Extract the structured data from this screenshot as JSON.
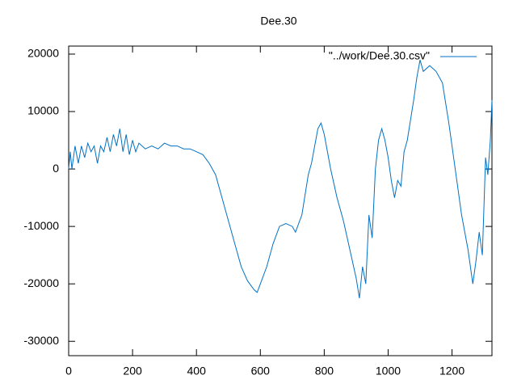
{
  "chart_data": {
    "type": "line",
    "title": "Dee.30",
    "x": [
      0,
      5,
      10,
      20,
      30,
      40,
      50,
      60,
      70,
      80,
      90,
      100,
      110,
      120,
      130,
      140,
      150,
      160,
      170,
      180,
      190,
      200,
      210,
      220,
      240,
      260,
      280,
      300,
      320,
      340,
      360,
      380,
      400,
      420,
      440,
      460,
      480,
      500,
      520,
      540,
      560,
      580,
      590,
      600,
      620,
      640,
      660,
      680,
      700,
      710,
      730,
      750,
      760,
      780,
      790,
      800,
      820,
      840,
      860,
      880,
      900,
      910,
      920,
      930,
      940,
      950,
      960,
      970,
      980,
      990,
      1000,
      1010,
      1020,
      1030,
      1040,
      1050,
      1060,
      1080,
      1090,
      1100,
      1110,
      1130,
      1150,
      1170,
      1190,
      1210,
      1230,
      1250,
      1265,
      1275,
      1285,
      1295,
      1305,
      1312,
      1320,
      1325
    ],
    "series": [
      {
        "name": "\"../work/Dee.30.csv\"",
        "color": "#0072c6",
        "values": [
          0,
          3000,
          0,
          4000,
          1000,
          4000,
          2000,
          4500,
          3000,
          4000,
          1000,
          4000,
          3000,
          5500,
          3000,
          6000,
          4000,
          7000,
          3000,
          6000,
          2500,
          5000,
          3000,
          4500,
          3500,
          4000,
          3500,
          4500,
          4000,
          4000,
          3500,
          3500,
          3000,
          2500,
          1000,
          -1000,
          -5000,
          -9000,
          -13000,
          -17000,
          -19500,
          -21000,
          -21500,
          -20000,
          -17000,
          -13000,
          -10000,
          -9500,
          -10000,
          -11000,
          -8000,
          -1000,
          1000,
          7000,
          8000,
          6000,
          0,
          -5000,
          -9000,
          -14000,
          -19000,
          -22500,
          -17000,
          -20000,
          -8000,
          -12000,
          0,
          5000,
          7000,
          5000,
          2000,
          -2000,
          -5000,
          -2000,
          -3000,
          3000,
          5000,
          12000,
          16000,
          19000,
          17000,
          18000,
          17000,
          15000,
          8000,
          0,
          -8000,
          -14000,
          -20000,
          -16000,
          -11000,
          -15000,
          2000,
          -1000,
          5000,
          12000
        ]
      }
    ],
    "xlim": [
      0,
      1325
    ],
    "ylim": [
      -32500,
      21400
    ],
    "xticks": [
      0,
      200,
      400,
      600,
      800,
      1000,
      1200
    ],
    "yticks": [
      -30000,
      -20000,
      -10000,
      0,
      10000,
      20000
    ],
    "legend": "top-right"
  }
}
